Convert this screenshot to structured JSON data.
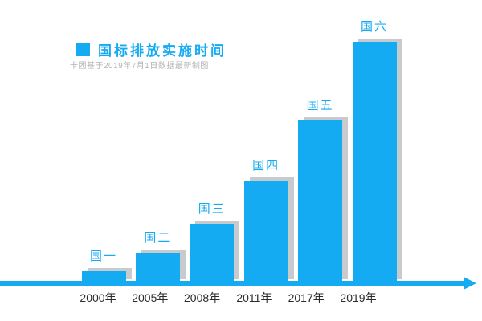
{
  "legend": {
    "title": "国标排放实施时间",
    "subtitle": "卡团基于2019年7月1日数据最新制图"
  },
  "colors": {
    "accent": "#14ABF2",
    "bar_shadow": "#C7CBCE",
    "year_label": "#2B2B2B",
    "subtitle": "#B3B3B3"
  },
  "chart_data": {
    "type": "bar",
    "title": "国标排放实施时间",
    "subtitle_watermark": "卡团基于2019年7月1日数据最新制图",
    "categories": [
      "2000年",
      "2005年",
      "2008年",
      "2011年",
      "2017年",
      "2019年"
    ],
    "bar_labels": [
      "国一",
      "国二",
      "国三",
      "国四",
      "国五",
      "国六"
    ],
    "series": [
      {
        "name": "国标排放实施时间",
        "values": [
          14,
          37,
          73,
          127,
          202,
          300
        ]
      }
    ],
    "value_note": "no y-axis shown; values are relative bar heights in px",
    "xlabel": "",
    "ylabel": "",
    "grid": false,
    "legend_position": "top-left",
    "x_axis_arrow": true
  }
}
